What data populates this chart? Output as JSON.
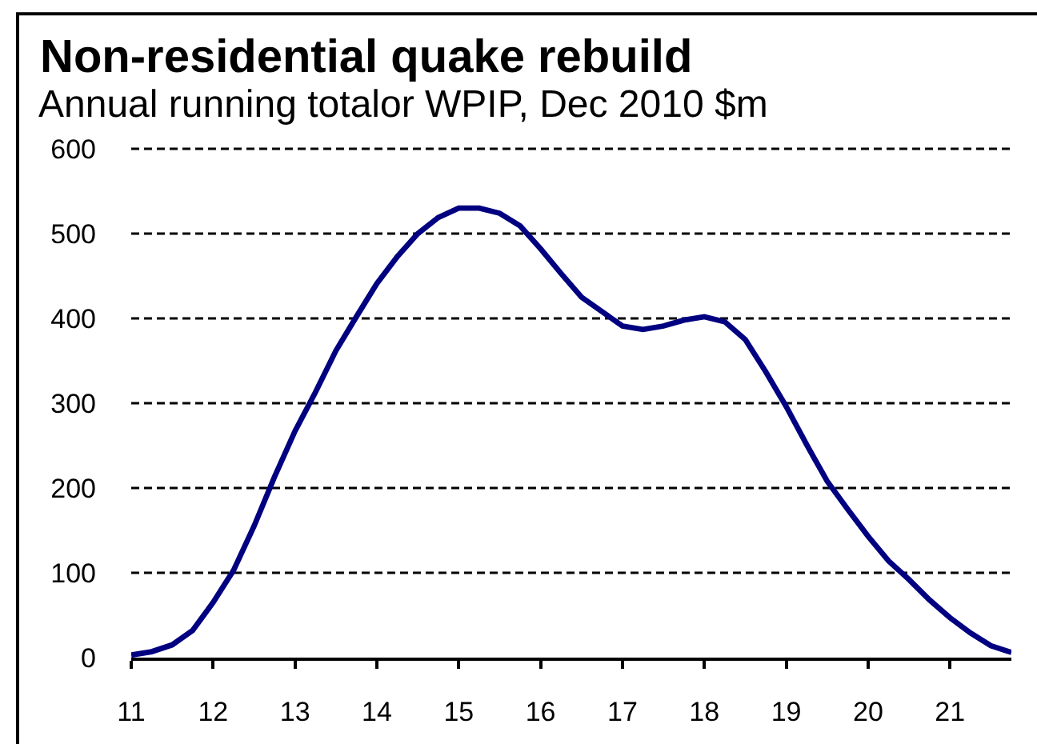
{
  "chart_data": {
    "type": "line",
    "title": "Non-residential quake rebuild",
    "subtitle": "Annual running totalor WPIP, Dec 2010 $m",
    "x": [
      11,
      11.25,
      11.5,
      11.75,
      12,
      12.25,
      12.5,
      12.75,
      13,
      13.25,
      13.5,
      13.75,
      14,
      14.25,
      14.5,
      14.75,
      15,
      15.25,
      15.5,
      15.75,
      16,
      16.25,
      16.5,
      16.75,
      17,
      17.25,
      17.5,
      17.75,
      18,
      18.25,
      18.5,
      18.75,
      19,
      19.25,
      19.5,
      19.75,
      20,
      20.25,
      20.5,
      20.75,
      21,
      21.25,
      21.5,
      21.75
    ],
    "series": [
      {
        "color": "#000080",
        "values": [
          3,
          7,
          15,
          32,
          65,
          103,
          155,
          213,
          267,
          313,
          362,
          402,
          441,
          473,
          500,
          519,
          530,
          530,
          524,
          509,
          482,
          453,
          425,
          408,
          391,
          387,
          391,
          398,
          402,
          396,
          375,
          337,
          296,
          251,
          208,
          175,
          143,
          114,
          92,
          68,
          47,
          29,
          14,
          6
        ]
      }
    ],
    "xlim": [
      11,
      21.75
    ],
    "xticks": [
      11,
      12,
      13,
      14,
      15,
      16,
      17,
      18,
      19,
      20,
      21
    ],
    "ylim": [
      0,
      600
    ],
    "yticks": [
      0,
      100,
      200,
      300,
      400,
      500,
      600
    ],
    "grid": "y",
    "line_style": "solid"
  }
}
